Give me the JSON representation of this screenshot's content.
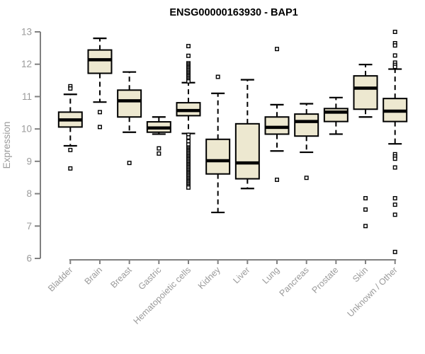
{
  "title": "ENSG00000163930 - BAP1",
  "colors": {
    "box_fill": "#EDE8D0",
    "box_border": "#000000",
    "median": "#000000",
    "whisker": "#000000",
    "outlier_border": "#000000",
    "outlier_fill": "#FFFFFF",
    "axis": "#808080",
    "tick_label": "#9A9A9A",
    "title": "#000000",
    "background": "#FFFFFF"
  },
  "chart_data": {
    "type": "boxplot",
    "title": "ENSG00000163930 - BAP1",
    "xlabel": "",
    "ylabel": "Expression",
    "ylim": [
      6,
      13
    ],
    "yticks": [
      6,
      7,
      8,
      9,
      10,
      11,
      12,
      13
    ],
    "grid": false,
    "legend": false,
    "categories": [
      "Bladder",
      "Brain",
      "Breast",
      "Gastric",
      "Hematopoietic cells",
      "Kidney",
      "Liver",
      "Lung",
      "Pancreas",
      "Prostate",
      "Skin",
      "Unknown / Other"
    ],
    "series": [
      {
        "category": "Bladder",
        "whisker_low": 9.48,
        "q1": 10.06,
        "median": 10.28,
        "q3": 10.52,
        "whisker_high": 11.07,
        "outliers": [
          11.32,
          11.25,
          9.35,
          8.78
        ]
      },
      {
        "category": "Brain",
        "whisker_low": 10.83,
        "q1": 11.72,
        "median": 12.14,
        "q3": 12.44,
        "whisker_high": 12.8,
        "outliers": [
          10.52,
          10.06
        ]
      },
      {
        "category": "Breast",
        "whisker_low": 9.9,
        "q1": 10.37,
        "median": 10.87,
        "q3": 11.2,
        "whisker_high": 11.76,
        "outliers": [
          8.95
        ]
      },
      {
        "category": "Gastric",
        "whisker_low": 9.84,
        "q1": 9.9,
        "median": 10.03,
        "q3": 10.22,
        "whisker_high": 10.37,
        "outliers": [
          9.4,
          9.24
        ]
      },
      {
        "category": "Hematopoietic cells",
        "whisker_low": 9.86,
        "q1": 10.41,
        "median": 10.57,
        "q3": 10.81,
        "whisker_high": 11.43,
        "outliers": [
          12.56,
          12.26,
          12.03,
          11.99,
          11.95,
          11.91,
          11.87,
          11.83,
          11.79,
          11.75,
          11.71,
          11.67,
          11.63,
          11.59,
          11.55,
          11.51,
          11.47,
          9.82,
          9.74,
          9.62,
          9.52,
          9.43,
          9.39,
          9.35,
          9.31,
          9.27,
          9.23,
          9.19,
          9.15,
          9.11,
          9.07,
          9.03,
          8.99,
          8.95,
          8.91,
          8.87,
          8.83,
          8.79,
          8.75,
          8.71,
          8.67,
          8.63,
          8.59,
          8.55,
          8.51,
          8.47,
          8.43,
          8.39,
          8.35,
          8.31,
          8.27,
          8.23,
          8.19
        ]
      },
      {
        "category": "Kidney",
        "whisker_low": 7.42,
        "q1": 8.61,
        "median": 9.02,
        "q3": 9.68,
        "whisker_high": 11.1,
        "outliers": [
          11.61
        ]
      },
      {
        "category": "Liver",
        "whisker_low": 8.16,
        "q1": 8.46,
        "median": 8.95,
        "q3": 10.16,
        "whisker_high": 11.52,
        "outliers": []
      },
      {
        "category": "Lung",
        "whisker_low": 9.32,
        "q1": 9.84,
        "median": 10.05,
        "q3": 10.37,
        "whisker_high": 10.75,
        "outliers": [
          12.47,
          8.43
        ]
      },
      {
        "category": "Pancreas",
        "whisker_low": 9.28,
        "q1": 9.78,
        "median": 10.23,
        "q3": 10.46,
        "whisker_high": 10.78,
        "outliers": [
          8.49
        ]
      },
      {
        "category": "Prostate",
        "whisker_low": 9.84,
        "q1": 10.23,
        "median": 10.52,
        "q3": 10.63,
        "whisker_high": 10.97,
        "outliers": []
      },
      {
        "category": "Skin",
        "whisker_low": 10.37,
        "q1": 10.61,
        "median": 11.26,
        "q3": 11.64,
        "whisker_high": 11.99,
        "outliers": [
          7.86,
          7.51,
          7.0
        ]
      },
      {
        "category": "Unknown / Other",
        "whisker_low": 9.54,
        "q1": 10.23,
        "median": 10.55,
        "q3": 10.94,
        "whisker_high": 11.85,
        "outliers": [
          13.0,
          12.65,
          12.58,
          12.27,
          12.05,
          11.98,
          11.92,
          9.22,
          9.15,
          9.08,
          8.81,
          7.86,
          7.66,
          7.35,
          6.2
        ]
      }
    ]
  }
}
